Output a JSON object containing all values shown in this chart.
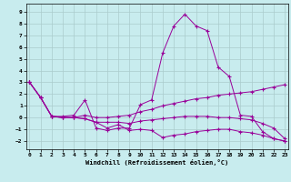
{
  "background_color": "#c8ecee",
  "grid_color": "#aacccc",
  "line_color": "#990099",
  "xlabel": "Windchill (Refroidissement éolien,°C)",
  "xlim": [
    -0.3,
    23.3
  ],
  "ylim": [
    -2.7,
    9.7
  ],
  "x_ticks": [
    0,
    1,
    2,
    3,
    4,
    5,
    6,
    7,
    8,
    9,
    10,
    11,
    12,
    13,
    14,
    15,
    16,
    17,
    18,
    19,
    20,
    21,
    22,
    23
  ],
  "y_ticks": [
    -2,
    -1,
    0,
    1,
    2,
    3,
    4,
    5,
    6,
    7,
    8,
    9
  ],
  "series": [
    {
      "x": [
        0,
        1,
        2,
        3,
        4,
        5,
        6,
        7,
        8,
        9,
        10,
        11,
        12,
        13,
        14,
        15,
        16,
        17,
        18,
        19,
        20,
        21,
        22,
        23
      ],
      "y": [
        3.0,
        1.7,
        0.1,
        0.1,
        0.2,
        1.5,
        -0.9,
        -1.1,
        -0.9,
        -0.9,
        1.1,
        1.5,
        5.5,
        7.8,
        8.8,
        7.8,
        7.4,
        4.3,
        3.5,
        0.2,
        0.1,
        -1.2,
        -1.8,
        -2.0
      ]
    },
    {
      "x": [
        0,
        1,
        2,
        3,
        4,
        5,
        6,
        7,
        8,
        9,
        10,
        11,
        12,
        13,
        14,
        15,
        16,
        17,
        18,
        19,
        20,
        21,
        22,
        23
      ],
      "y": [
        3.0,
        1.7,
        0.1,
        0.0,
        0.0,
        0.2,
        0.0,
        0.0,
        0.1,
        0.2,
        0.5,
        0.7,
        1.0,
        1.2,
        1.4,
        1.6,
        1.7,
        1.9,
        2.0,
        2.1,
        2.2,
        2.4,
        2.6,
        2.8
      ]
    },
    {
      "x": [
        0,
        1,
        2,
        3,
        4,
        5,
        6,
        7,
        8,
        9,
        10,
        11,
        12,
        13,
        14,
        15,
        16,
        17,
        18,
        19,
        20,
        21,
        22,
        23
      ],
      "y": [
        3.0,
        1.7,
        0.1,
        0.0,
        0.0,
        -0.1,
        -0.4,
        -0.4,
        -0.4,
        -0.5,
        -0.3,
        -0.2,
        -0.1,
        0.0,
        0.1,
        0.1,
        0.1,
        0.0,
        0.0,
        -0.1,
        -0.2,
        -0.5,
        -0.9,
        -1.8
      ]
    },
    {
      "x": [
        0,
        1,
        2,
        3,
        4,
        5,
        6,
        7,
        8,
        9,
        10,
        11,
        12,
        13,
        14,
        15,
        16,
        17,
        18,
        19,
        20,
        21,
        22,
        23
      ],
      "y": [
        3.0,
        1.7,
        0.1,
        0.0,
        0.0,
        -0.1,
        -0.4,
        -0.9,
        -0.6,
        -1.1,
        -1.0,
        -1.1,
        -1.7,
        -1.5,
        -1.4,
        -1.2,
        -1.1,
        -1.0,
        -1.0,
        -1.2,
        -1.3,
        -1.5,
        -1.8,
        -2.0
      ]
    }
  ]
}
